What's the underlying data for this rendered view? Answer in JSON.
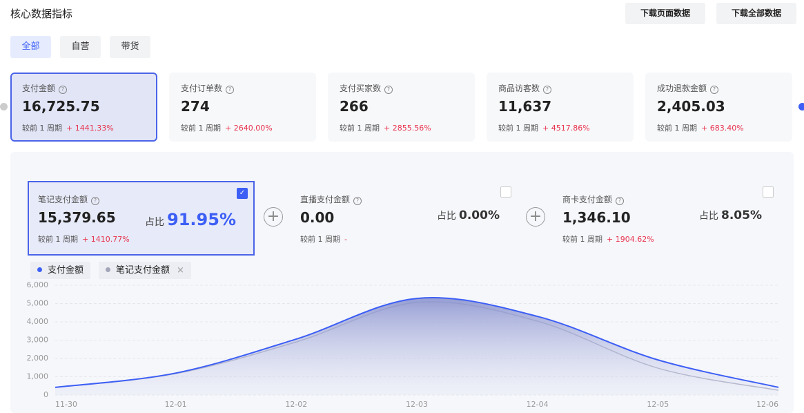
{
  "header": {
    "title": "核心数据指标",
    "buttons": [
      "下载页面数据",
      "下载全部数据"
    ]
  },
  "tabs": [
    "全部",
    "自营",
    "带货"
  ],
  "cards": [
    {
      "label": "支付金额",
      "value": "16,725.75",
      "compare": "较前 1 周期",
      "change": "+ 1441.33%"
    },
    {
      "label": "支付订单数",
      "value": "274",
      "compare": "较前 1 周期",
      "change": "+ 2640.00%"
    },
    {
      "label": "支付买家数",
      "value": "266",
      "compare": "较前 1 周期",
      "change": "+ 2855.56%"
    },
    {
      "label": "商品访客数",
      "value": "11,637",
      "compare": "较前 1 周期",
      "change": "+ 4517.86%"
    },
    {
      "label": "成功退款金额",
      "value": "2,405.03",
      "compare": "较前 1 周期",
      "change": "+ 683.40%"
    }
  ],
  "breakdown": [
    {
      "label": "笔记支付金额",
      "value": "15,379.65",
      "share_label": "占比",
      "share": "91.95%",
      "compare": "较前 1 周期",
      "change": "+ 1410.77%"
    },
    {
      "label": "直播支付金额",
      "value": "0.00",
      "share_label": "占比",
      "share": "0.00%",
      "compare": "较前 1 周期",
      "change": "-"
    },
    {
      "label": "商卡支付金额",
      "value": "1,346.10",
      "share_label": "占比",
      "share": "8.05%",
      "compare": "较前 1 周期",
      "change": "+ 1904.62%"
    }
  ],
  "chart_data": {
    "type": "area",
    "x": [
      "11-30",
      "12-01",
      "12-02",
      "12-03",
      "12-04",
      "12-05",
      "12-06"
    ],
    "series": [
      {
        "name": "支付金额",
        "color": "#3d5ff5",
        "values": [
          420,
          1200,
          3060,
          5280,
          4300,
          1920,
          420
        ]
      },
      {
        "name": "笔记支付金额",
        "color": "#a3a6b8",
        "values": [
          420,
          1170,
          2900,
          5060,
          4040,
          1470,
          260
        ]
      }
    ],
    "ylim": [
      0,
      6000
    ],
    "yticks": [
      0,
      {
        "value": 1000,
        "label": "1,000"
      },
      {
        "value": 2000,
        "label": "2,000"
      },
      {
        "value": 3000,
        "label": "3,000"
      },
      {
        "value": 4000,
        "label": "4,000"
      },
      {
        "value": 5000,
        "label": "5,000"
      },
      {
        "value": 6000,
        "label": "6,000"
      }
    ],
    "grid": true
  }
}
